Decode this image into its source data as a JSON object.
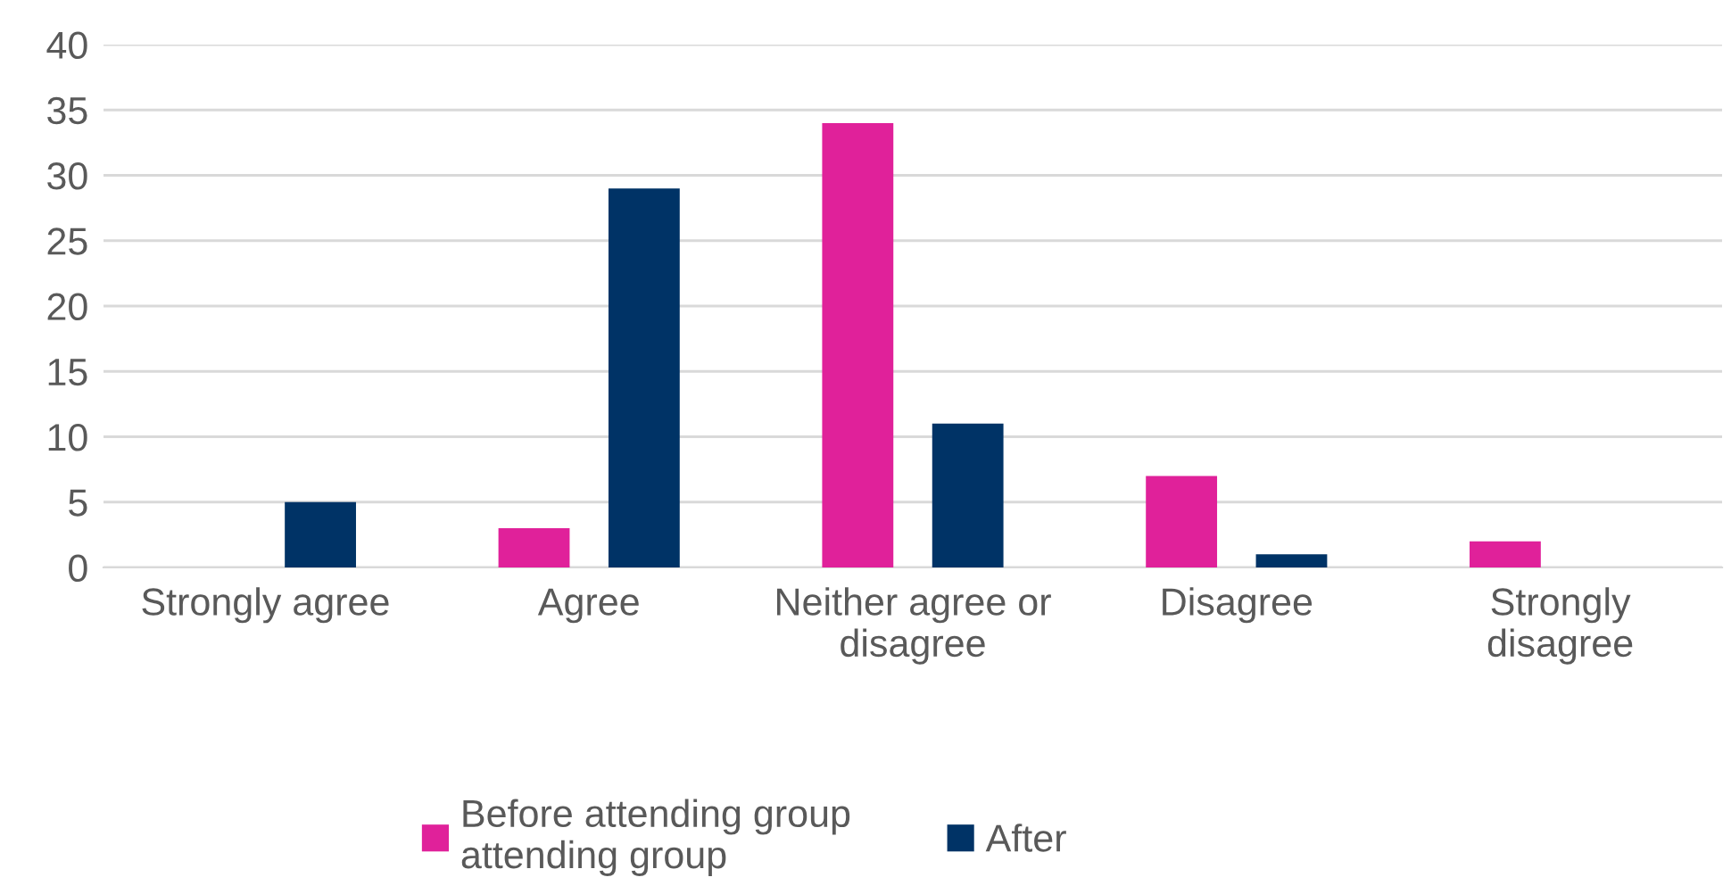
{
  "chart_data": {
    "type": "bar",
    "categories": [
      "Strongly agree",
      "Agree",
      "Neither agree or\ndisagree",
      "Disagree",
      "Strongly\ndisagree"
    ],
    "series": [
      {
        "name": "Before attending group\nattending group",
        "color": "#e0219a",
        "values": [
          0,
          3,
          34,
          7,
          2
        ]
      },
      {
        "name": "After",
        "color": "#003366",
        "values": [
          5,
          29,
          11,
          1,
          0
        ]
      }
    ],
    "ylim": [
      0,
      40
    ],
    "yticks": [
      0,
      5,
      10,
      15,
      20,
      25,
      30,
      35,
      40
    ],
    "grid": "y",
    "legend": "bottom"
  }
}
